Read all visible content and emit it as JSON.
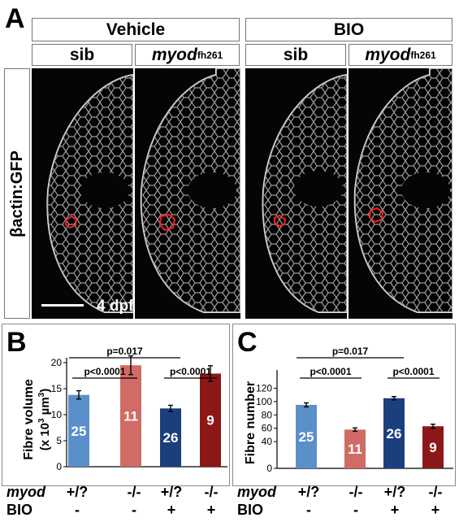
{
  "panelA": {
    "letter": "A",
    "groups": [
      "Vehicle",
      "BIO"
    ],
    "columns": [
      {
        "genotype": "sib",
        "sup": ""
      },
      {
        "genotype": "myod",
        "sup": "fh261"
      },
      {
        "genotype": "sib",
        "sup": ""
      },
      {
        "genotype": "myod",
        "sup": "fh261"
      }
    ],
    "row_label": "βactin:GFP",
    "scale_label": "4 dpf"
  },
  "chart_data": [
    {
      "panel": "B",
      "type": "bar",
      "ylabel": "Fibre volume",
      "ylabel_unit": "(x 10",
      "ylabel_unit_sup": "3",
      "ylabel_unit_end": " µm",
      "ylabel_unit_sup2": "3",
      "ylabel_unit_close": ")",
      "ylim": [
        0,
        20
      ],
      "yticks": [
        0,
        5,
        10,
        15,
        20
      ],
      "values": [
        13.8,
        19.5,
        11.2,
        17.9
      ],
      "errors": [
        0.8,
        1.8,
        0.6,
        1.5
      ],
      "n": [
        "25",
        "11",
        "26",
        "9"
      ],
      "colors": [
        "#5b8fc9",
        "#d06b66",
        "#1b3f7d",
        "#8c1717"
      ],
      "significance": [
        {
          "label": "p=0.017",
          "from": 0,
          "to": 2
        },
        {
          "label": "p<0.0001",
          "from": 0,
          "to": 1
        },
        {
          "label": "p<0.0001",
          "from": 2,
          "to": 3
        }
      ]
    },
    {
      "panel": "C",
      "type": "bar",
      "ylabel": "Fibre number",
      "ylim": [
        0,
        140
      ],
      "yticks": [
        0,
        40,
        60,
        80,
        100,
        120
      ],
      "values": [
        95,
        58,
        105,
        63
      ],
      "errors": [
        3,
        2.5,
        2.5,
        3
      ],
      "n": [
        "25",
        "11",
        "26",
        "9"
      ],
      "colors": [
        "#5b8fc9",
        "#d06b66",
        "#1b3f7d",
        "#8c1717"
      ],
      "significance": [
        {
          "label": "p=0.017",
          "from": 0,
          "to": 2
        },
        {
          "label": "p<0.0001",
          "from": 0,
          "to": 1
        },
        {
          "label": "p<0.0001",
          "from": 2,
          "to": 3
        }
      ]
    }
  ],
  "table": {
    "row1_label": "myod",
    "row2_label": "BIO",
    "myod": [
      "+/?",
      "-/-",
      "+/?",
      "-/-"
    ],
    "bio": [
      "-",
      "-",
      "+",
      "+"
    ]
  },
  "panelB_letter": "B",
  "panelC_letter": "C"
}
